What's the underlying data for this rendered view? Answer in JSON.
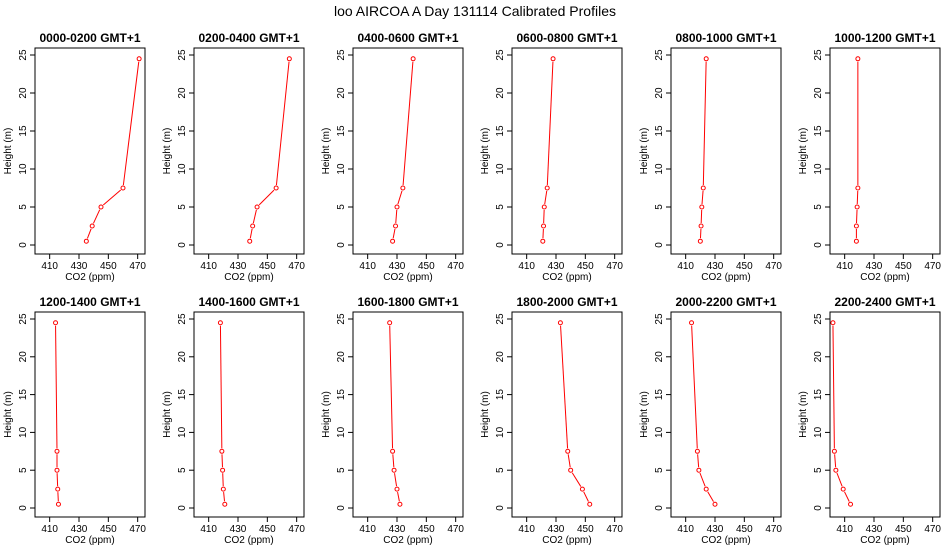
{
  "figure": {
    "title": "loo AIRCOA A  Day 131114  Calibrated Profiles"
  },
  "style": {
    "series_color": "#ff0000",
    "axis_color": "#000000",
    "background": "#ffffff"
  },
  "chart_data": [
    {
      "type": "line",
      "title": "0000-0200 GMT+1",
      "xlabel": "CO2 (ppm)",
      "ylabel": "Height (m)",
      "xlim": [
        400,
        475
      ],
      "ylim": [
        0,
        25
      ],
      "xticks": [
        410,
        430,
        450,
        470
      ],
      "yticks": [
        0,
        5,
        10,
        15,
        20,
        25
      ],
      "grid": false,
      "series": [
        {
          "x": [
            435,
            439,
            445,
            460,
            471
          ],
          "y": [
            0.5,
            2.5,
            5,
            7.5,
            24.5
          ]
        }
      ]
    },
    {
      "type": "line",
      "title": "0200-0400 GMT+1",
      "xlabel": "CO2 (ppm)",
      "ylabel": "Height (m)",
      "xlim": [
        400,
        475
      ],
      "ylim": [
        0,
        25
      ],
      "xticks": [
        410,
        430,
        450,
        470
      ],
      "yticks": [
        0,
        5,
        10,
        15,
        20,
        25
      ],
      "grid": false,
      "series": [
        {
          "x": [
            438,
            440,
            443,
            456,
            465
          ],
          "y": [
            0.5,
            2.5,
            5,
            7.5,
            24.5
          ]
        }
      ]
    },
    {
      "type": "line",
      "title": "0400-0600 GMT+1",
      "xlabel": "CO2 (ppm)",
      "ylabel": "Height (m)",
      "xlim": [
        400,
        475
      ],
      "ylim": [
        0,
        25
      ],
      "xticks": [
        410,
        430,
        450,
        470
      ],
      "yticks": [
        0,
        5,
        10,
        15,
        20,
        25
      ],
      "grid": false,
      "series": [
        {
          "x": [
            427,
            429,
            430,
            434,
            441
          ],
          "y": [
            0.5,
            2.5,
            5,
            7.5,
            24.5
          ]
        }
      ]
    },
    {
      "type": "line",
      "title": "0600-0800 GMT+1",
      "xlabel": "CO2 (ppm)",
      "ylabel": "Height (m)",
      "xlim": [
        400,
        475
      ],
      "ylim": [
        0,
        25
      ],
      "xticks": [
        410,
        430,
        450,
        470
      ],
      "yticks": [
        0,
        5,
        10,
        15,
        20,
        25
      ],
      "grid": false,
      "series": [
        {
          "x": [
            421,
            421.5,
            422,
            424,
            428
          ],
          "y": [
            0.5,
            2.5,
            5,
            7.5,
            24.5
          ]
        }
      ]
    },
    {
      "type": "line",
      "title": "0800-1000 GMT+1",
      "xlabel": "CO2 (ppm)",
      "ylabel": "Height (m)",
      "xlim": [
        400,
        475
      ],
      "ylim": [
        0,
        25
      ],
      "xticks": [
        410,
        430,
        450,
        470
      ],
      "yticks": [
        0,
        5,
        10,
        15,
        20,
        25
      ],
      "grid": false,
      "series": [
        {
          "x": [
            420,
            420.5,
            421,
            422,
            424
          ],
          "y": [
            0.5,
            2.5,
            5,
            7.5,
            24.5
          ]
        }
      ]
    },
    {
      "type": "line",
      "title": "1000-1200 GMT+1",
      "xlabel": "CO2 (ppm)",
      "ylabel": "Height (m)",
      "xlim": [
        400,
        475
      ],
      "ylim": [
        0,
        25
      ],
      "xticks": [
        410,
        430,
        450,
        470
      ],
      "yticks": [
        0,
        5,
        10,
        15,
        20,
        25
      ],
      "grid": false,
      "series": [
        {
          "x": [
            418,
            418,
            418.5,
            419,
            419
          ],
          "y": [
            0.5,
            2.5,
            5,
            7.5,
            24.5
          ]
        }
      ]
    },
    {
      "type": "line",
      "title": "1200-1400 GMT+1",
      "xlabel": "CO2 (ppm)",
      "ylabel": "Height (m)",
      "xlim": [
        400,
        475
      ],
      "ylim": [
        0,
        25
      ],
      "xticks": [
        410,
        430,
        450,
        470
      ],
      "yticks": [
        0,
        5,
        10,
        15,
        20,
        25
      ],
      "grid": false,
      "series": [
        {
          "x": [
            416,
            415.5,
            415,
            415,
            414
          ],
          "y": [
            0.5,
            2.5,
            5,
            7.5,
            24.5
          ]
        }
      ]
    },
    {
      "type": "line",
      "title": "1400-1600 GMT+1",
      "xlabel": "CO2 (ppm)",
      "ylabel": "Height (m)",
      "xlim": [
        400,
        475
      ],
      "ylim": [
        0,
        25
      ],
      "xticks": [
        410,
        430,
        450,
        470
      ],
      "yticks": [
        0,
        5,
        10,
        15,
        20,
        25
      ],
      "grid": false,
      "series": [
        {
          "x": [
            421,
            420,
            419.5,
            419,
            418
          ],
          "y": [
            0.5,
            2.5,
            5,
            7.5,
            24.5
          ]
        }
      ]
    },
    {
      "type": "line",
      "title": "1600-1800 GMT+1",
      "xlabel": "CO2 (ppm)",
      "ylabel": "Height (m)",
      "xlim": [
        400,
        475
      ],
      "ylim": [
        0,
        25
      ],
      "xticks": [
        410,
        430,
        450,
        470
      ],
      "yticks": [
        0,
        5,
        10,
        15,
        20,
        25
      ],
      "grid": false,
      "series": [
        {
          "x": [
            432,
            430,
            428,
            427,
            425
          ],
          "y": [
            0.5,
            2.5,
            5,
            7.5,
            24.5
          ]
        }
      ]
    },
    {
      "type": "line",
      "title": "1800-2000 GMT+1",
      "xlabel": "CO2 (ppm)",
      "ylabel": "Height (m)",
      "xlim": [
        400,
        475
      ],
      "ylim": [
        0,
        25
      ],
      "xticks": [
        410,
        430,
        450,
        470
      ],
      "yticks": [
        0,
        5,
        10,
        15,
        20,
        25
      ],
      "grid": false,
      "series": [
        {
          "x": [
            453,
            448,
            440,
            438,
            433
          ],
          "y": [
            0.5,
            2.5,
            5,
            7.5,
            24.5
          ]
        }
      ]
    },
    {
      "type": "line",
      "title": "2000-2200 GMT+1",
      "xlabel": "CO2 (ppm)",
      "ylabel": "Height (m)",
      "xlim": [
        400,
        475
      ],
      "ylim": [
        0,
        25
      ],
      "xticks": [
        410,
        430,
        450,
        470
      ],
      "yticks": [
        0,
        5,
        10,
        15,
        20,
        25
      ],
      "grid": false,
      "series": [
        {
          "x": [
            430,
            424,
            419,
            418,
            414
          ],
          "y": [
            0.5,
            2.5,
            5,
            7.5,
            24.5
          ]
        }
      ]
    },
    {
      "type": "line",
      "title": "2200-2400 GMT+1",
      "xlabel": "CO2 (ppm)",
      "ylabel": "Height (m)",
      "xlim": [
        400,
        475
      ],
      "ylim": [
        0,
        25
      ],
      "xticks": [
        410,
        430,
        450,
        470
      ],
      "yticks": [
        0,
        5,
        10,
        15,
        20,
        25
      ],
      "grid": false,
      "series": [
        {
          "x": [
            414,
            409,
            404,
            403,
            402
          ],
          "y": [
            0.5,
            2.5,
            5,
            7.5,
            24.5
          ]
        }
      ]
    }
  ]
}
